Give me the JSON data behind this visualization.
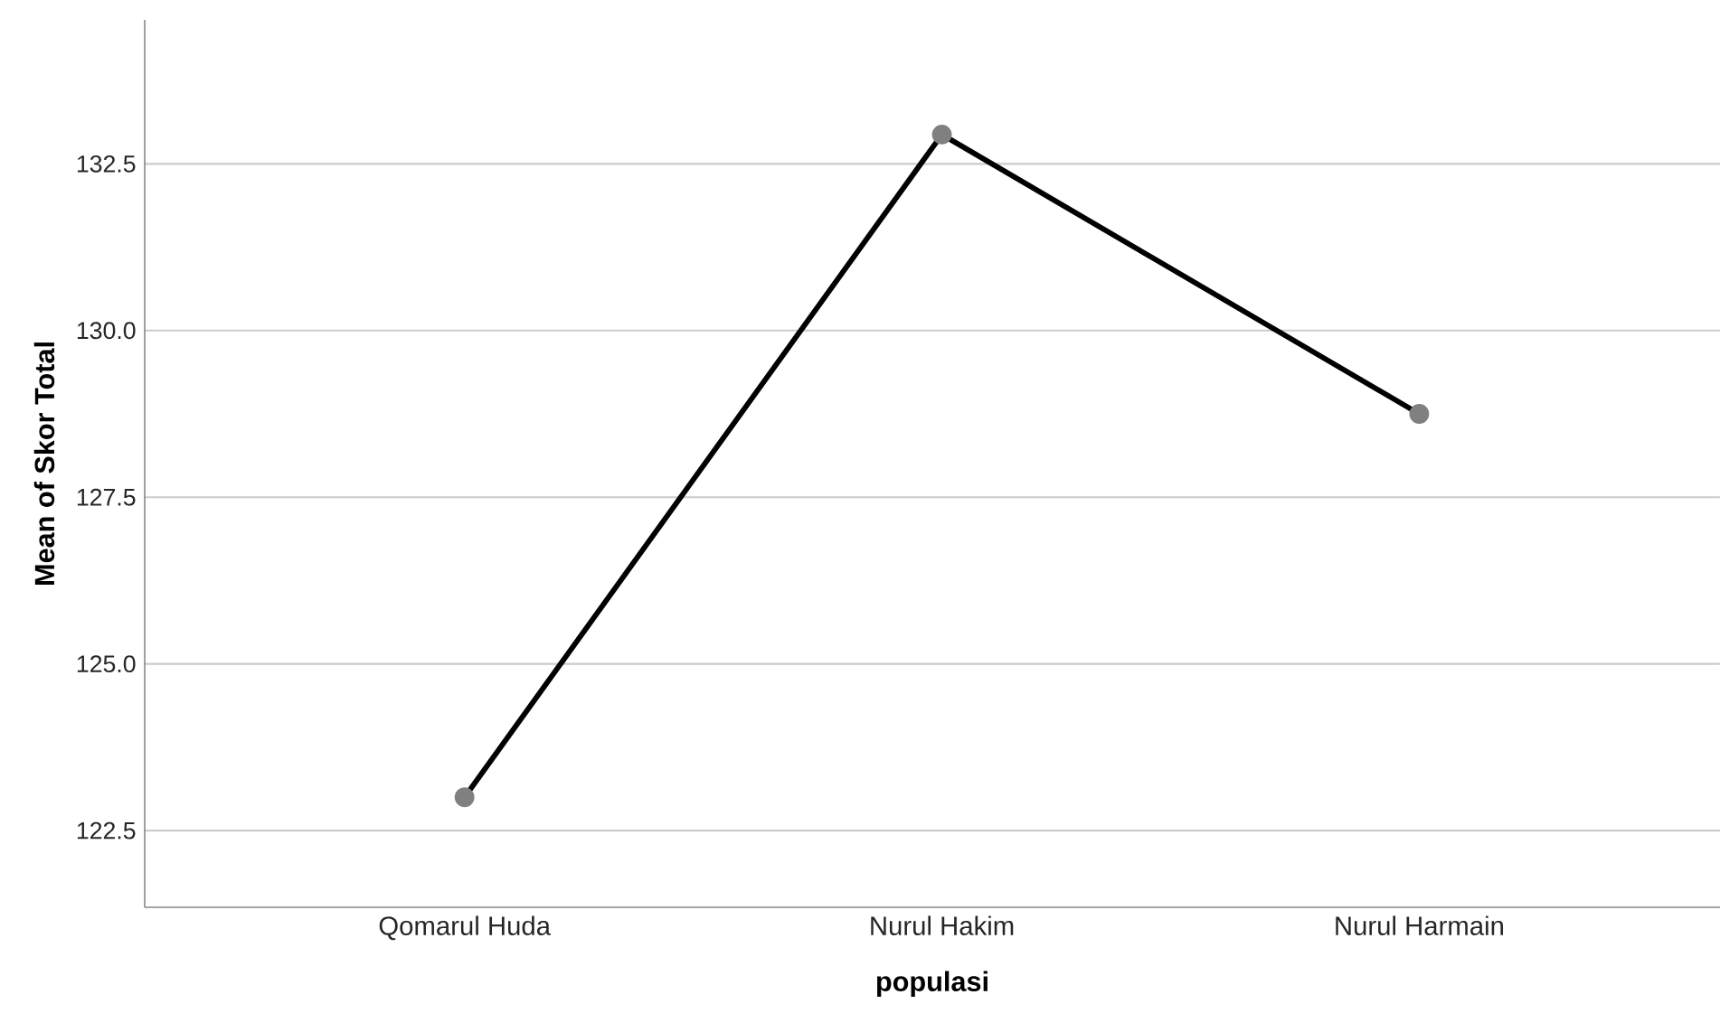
{
  "chart_data": {
    "type": "line",
    "xlabel": "populasi",
    "ylabel": "Mean of Skor Total",
    "categories": [
      "Qomarul Huda",
      "Nurul Hakim",
      "Nurul Harmain"
    ],
    "values": [
      123.0,
      132.94,
      128.75
    ],
    "color": "#000000",
    "marker": "circle",
    "line_style": "solid",
    "ylim": [
      121.35,
      134.66
    ],
    "yticks": [
      122.5,
      {
        "value": 125,
        "label": "125.0"
      },
      127.5,
      {
        "value": 130,
        "label": "130.0"
      },
      132.5
    ],
    "grid": "y"
  }
}
